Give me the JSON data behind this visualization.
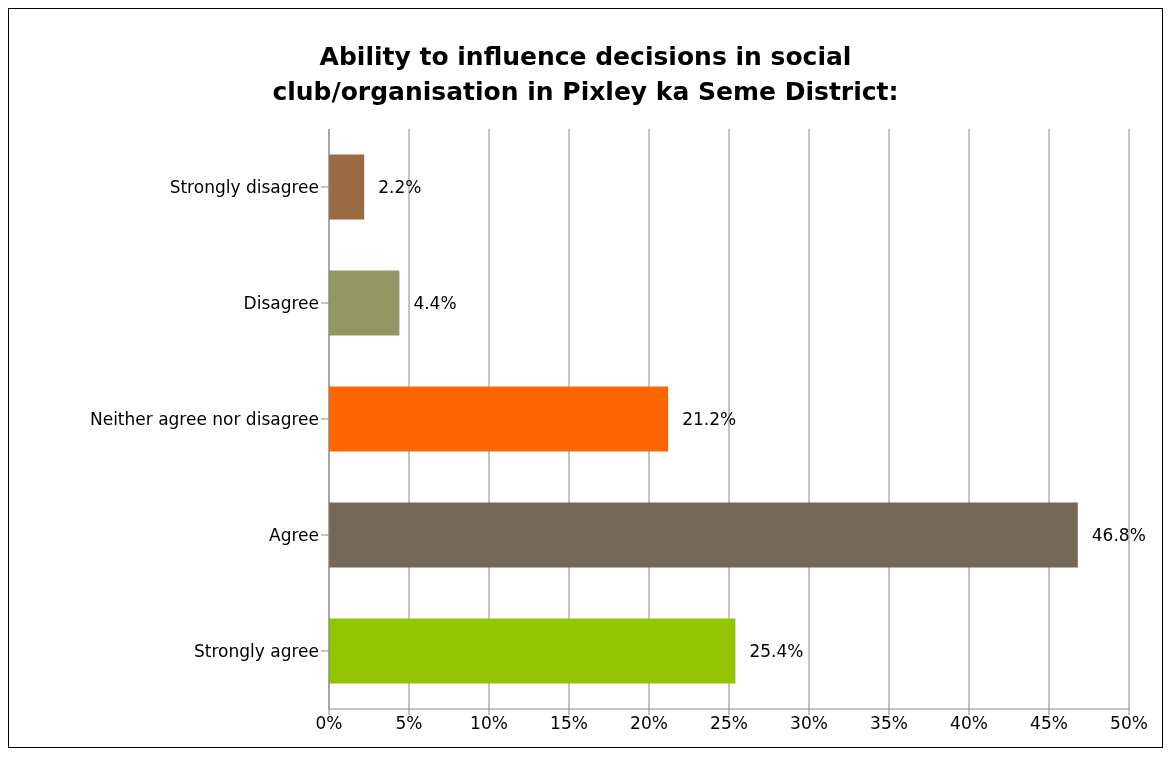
{
  "chart_data": {
    "type": "bar",
    "orientation": "horizontal",
    "title": "Ability to influence decisions in social club/organisation in Pixley ka Seme District:",
    "categories": [
      "Strongly disagree",
      "Disagree",
      "Neither agree nor disagree",
      "Agree",
      "Strongly agree"
    ],
    "values": [
      2.2,
      4.4,
      21.2,
      46.8,
      25.4
    ],
    "colors": [
      "#9a6a43",
      "#939764",
      "#ff6600",
      "#736857",
      "#92c500"
    ],
    "value_labels": [
      "2.2%",
      "4.4%",
      "21.2%",
      "46.8%",
      "25.4%"
    ],
    "xlim": [
      0,
      50
    ],
    "xticks": [
      {
        "value": 0,
        "label": "0%"
      },
      {
        "value": 5,
        "label": "5%"
      },
      {
        "value": 10,
        "label": "10%"
      },
      {
        "value": 15,
        "label": "15%"
      },
      {
        "value": 20,
        "label": "20%"
      },
      {
        "value": 25,
        "label": "25%"
      },
      {
        "value": 30,
        "label": "30%"
      },
      {
        "value": 35,
        "label": "35%"
      },
      {
        "value": 40,
        "label": "40%"
      },
      {
        "value": 45,
        "label": "45%"
      },
      {
        "value": 50,
        "label": "50%"
      }
    ],
    "grid": "x"
  }
}
